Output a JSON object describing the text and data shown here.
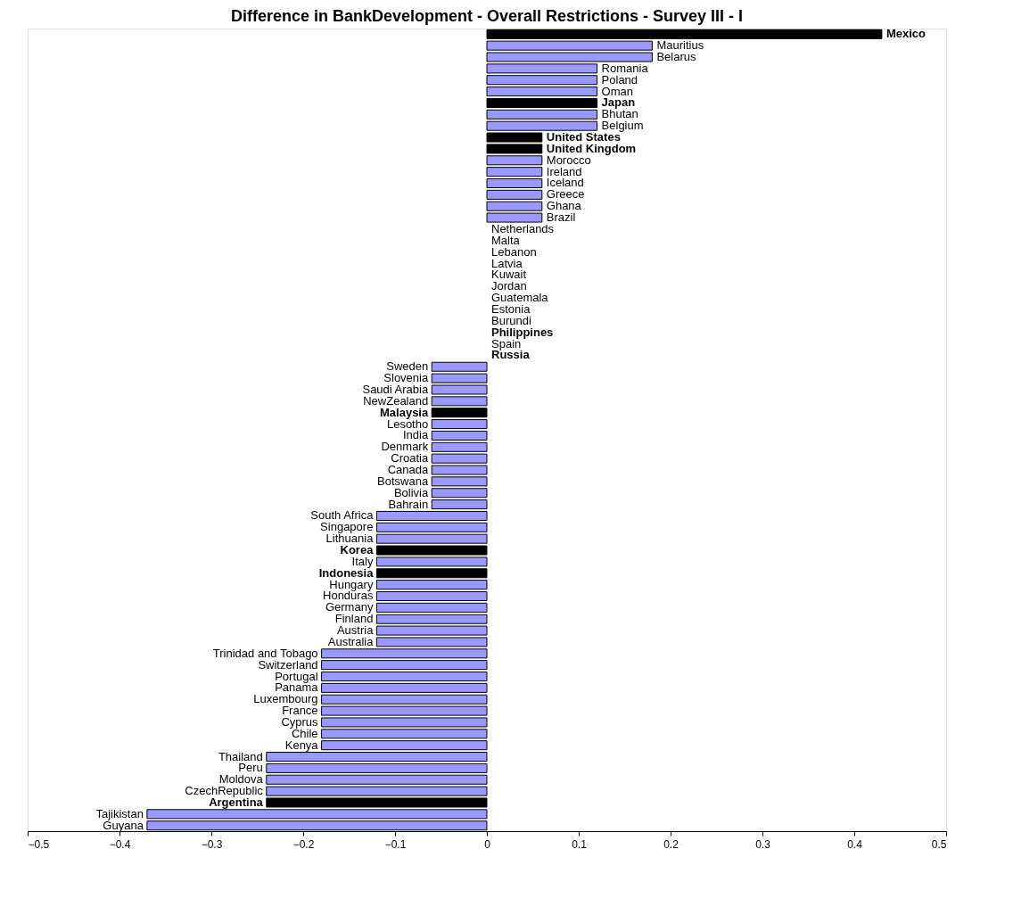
{
  "chart_data": {
    "type": "bar",
    "orientation": "horizontal",
    "title": "Difference in BankDevelopment - Overall Restrictions - Survey III - I",
    "categories": [
      "Mexico",
      "Mauritius",
      "Belarus",
      "Romania",
      "Poland",
      "Oman",
      "Japan",
      "Bhutan",
      "Belgium",
      "United States",
      "United Kingdom",
      "Morocco",
      "Ireland",
      "Iceland",
      "Greece",
      "Ghana",
      "Brazil",
      "Netherlands",
      "Malta",
      "Lebanon",
      "Latvia",
      "Kuwait",
      "Jordan",
      "Guatemala",
      "Estonia",
      "Burundi",
      "Philippines",
      "Spain",
      "Russia",
      "Sweden",
      "Slovenia",
      "Saudi Arabia",
      "NewZealand",
      "Malaysia",
      "Lesotho",
      "India",
      "Denmark",
      "Croatia",
      "Canada",
      "Botswana",
      "Bolivia",
      "Bahrain",
      "South Africa",
      "Singapore",
      "Lithuania",
      "Korea",
      "Italy",
      "Indonesia",
      "Hungary",
      "Honduras",
      "Germany",
      "Finland",
      "Austria",
      "Australia",
      "Trinidad and Tobago",
      "Switzerland",
      "Portugal",
      "Panama",
      "Luxembourg",
      "France",
      "Cyprus",
      "Chile",
      "Kenya",
      "Thailand",
      "Peru",
      "Moldova",
      "CzechRepublic",
      "Argentina",
      "Tajikistan",
      "Guyana"
    ],
    "values": [
      0.43,
      0.18,
      0.18,
      0.12,
      0.12,
      0.12,
      0.12,
      0.12,
      0.12,
      0.06,
      0.06,
      0.06,
      0.06,
      0.06,
      0.06,
      0.06,
      0.06,
      0,
      0,
      0,
      0,
      0,
      0,
      0,
      0,
      0,
      0,
      0,
      0,
      -0.06,
      -0.06,
      -0.06,
      -0.06,
      -0.06,
      -0.06,
      -0.06,
      -0.06,
      -0.06,
      -0.06,
      -0.06,
      -0.06,
      -0.06,
      -0.12,
      -0.12,
      -0.12,
      -0.12,
      -0.12,
      -0.12,
      -0.12,
      -0.12,
      -0.12,
      -0.12,
      -0.12,
      -0.12,
      -0.18,
      -0.18,
      -0.18,
      -0.18,
      -0.18,
      -0.18,
      -0.18,
      -0.18,
      -0.18,
      -0.24,
      -0.24,
      -0.24,
      -0.24,
      -0.24,
      -0.37,
      -0.37
    ],
    "colors": [
      "#000000",
      "#9999ff",
      "#9999ff",
      "#9999ff",
      "#9999ff",
      "#9999ff",
      "#000000",
      "#9999ff",
      "#9999ff",
      "#000000",
      "#000000",
      "#9999ff",
      "#9999ff",
      "#9999ff",
      "#9999ff",
      "#9999ff",
      "#9999ff",
      "#9999ff",
      "#9999ff",
      "#9999ff",
      "#9999ff",
      "#9999ff",
      "#9999ff",
      "#9999ff",
      "#9999ff",
      "#9999ff",
      "#000000",
      "#9999ff",
      "#000000",
      "#9999ff",
      "#9999ff",
      "#9999ff",
      "#9999ff",
      "#000000",
      "#9999ff",
      "#9999ff",
      "#9999ff",
      "#9999ff",
      "#9999ff",
      "#9999ff",
      "#9999ff",
      "#9999ff",
      "#9999ff",
      "#9999ff",
      "#9999ff",
      "#000000",
      "#9999ff",
      "#000000",
      "#9999ff",
      "#9999ff",
      "#9999ff",
      "#9999ff",
      "#9999ff",
      "#9999ff",
      "#9999ff",
      "#9999ff",
      "#9999ff",
      "#9999ff",
      "#9999ff",
      "#9999ff",
      "#9999ff",
      "#9999ff",
      "#9999ff",
      "#9999ff",
      "#9999ff",
      "#9999ff",
      "#9999ff",
      "#000000",
      "#9999ff",
      "#9999ff"
    ],
    "xlim": [
      -0.5,
      0.5
    ],
    "xticks": [
      -0.5,
      -0.4,
      -0.3,
      -0.2,
      -0.1,
      0,
      0.1,
      0.2,
      0.3,
      0.4,
      0.5
    ],
    "grid": false
  }
}
